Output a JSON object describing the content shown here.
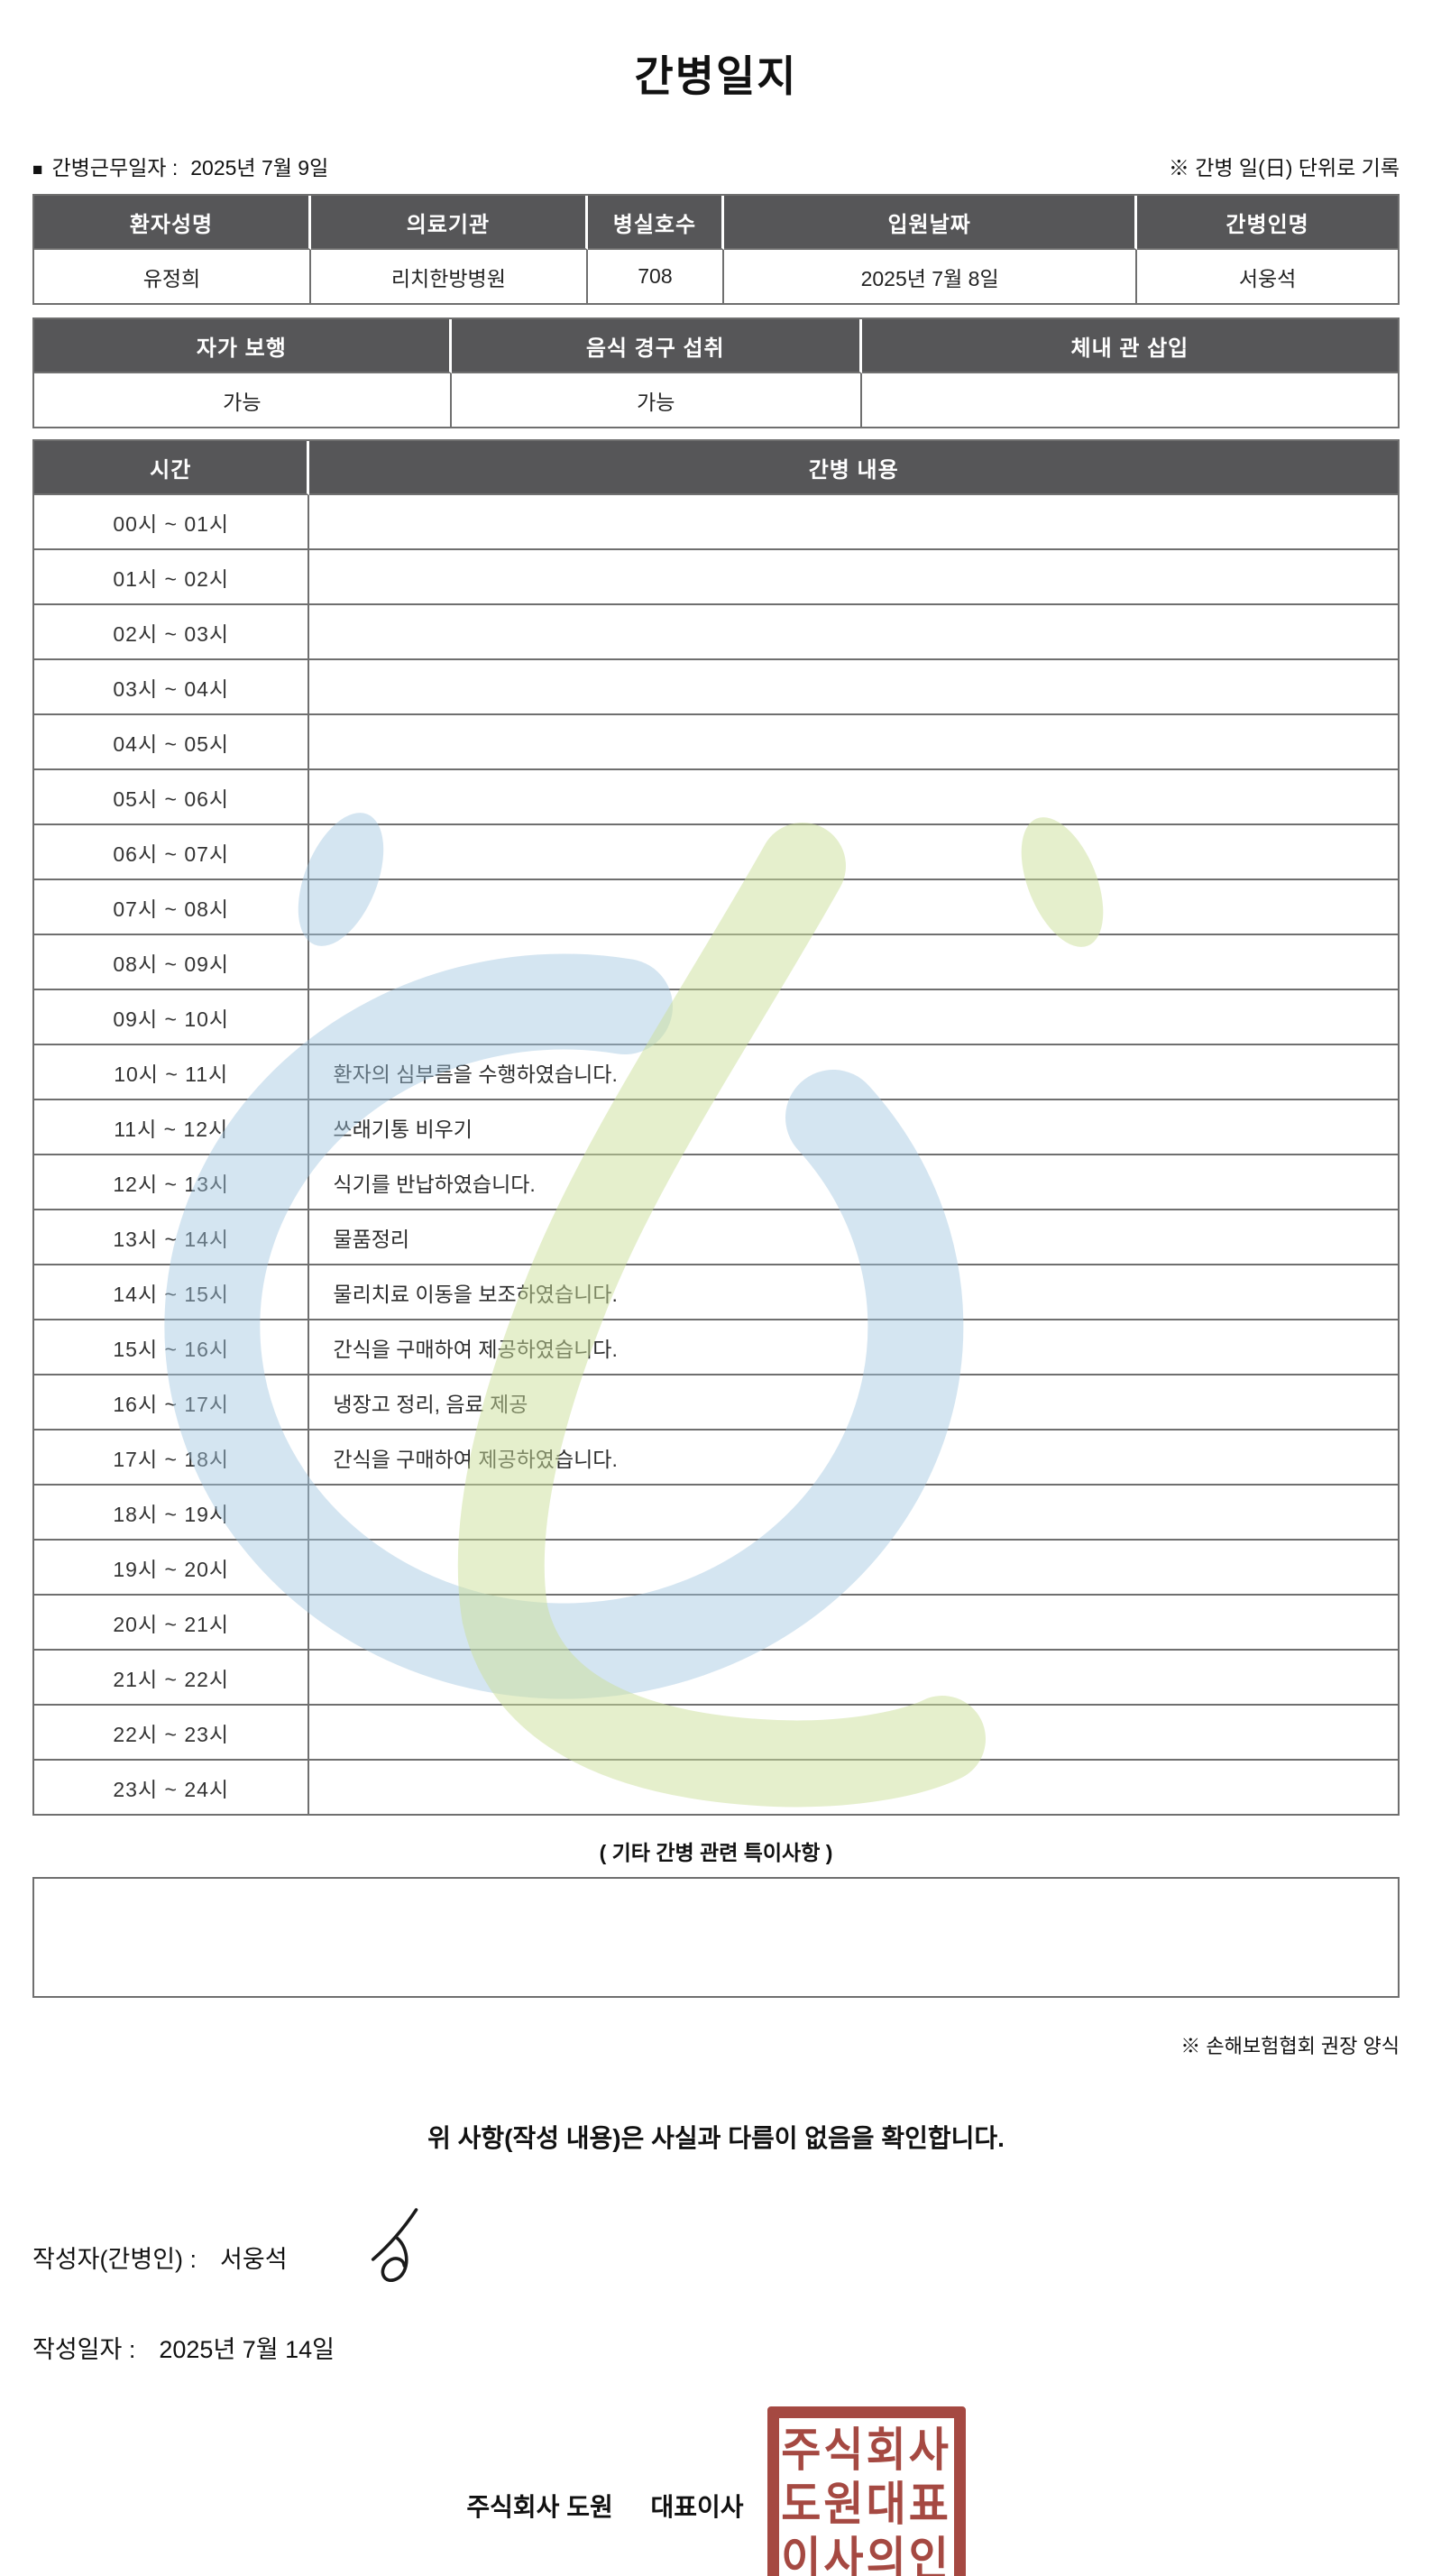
{
  "title": "간병일지",
  "header": {
    "work_date_label": "간병근무일자  :",
    "work_date_value": "2025년 7월 9일",
    "unit_note": "※ 간병 일(日) 단위로 기록"
  },
  "patient_table": {
    "headers": [
      "환자성명",
      "의료기관",
      "병실호수",
      "입원날짜",
      "간병인명"
    ],
    "values": [
      "유정희",
      "리치한방병원",
      "708",
      "2025년 7월 8일",
      "서웅석"
    ]
  },
  "status_table": {
    "headers": [
      "자가 보행",
      "음식 경구 섭취",
      "체내 관 삽입"
    ],
    "values": [
      "가능",
      "가능",
      ""
    ]
  },
  "time_table": {
    "headers": [
      "시간",
      "간병 내용"
    ],
    "rows": [
      {
        "time": "00시 ~ 01시",
        "content": ""
      },
      {
        "time": "01시 ~ 02시",
        "content": ""
      },
      {
        "time": "02시 ~ 03시",
        "content": ""
      },
      {
        "time": "03시 ~ 04시",
        "content": ""
      },
      {
        "time": "04시 ~ 05시",
        "content": ""
      },
      {
        "time": "05시 ~ 06시",
        "content": ""
      },
      {
        "time": "06시 ~ 07시",
        "content": ""
      },
      {
        "time": "07시 ~ 08시",
        "content": ""
      },
      {
        "time": "08시 ~ 09시",
        "content": ""
      },
      {
        "time": "09시 ~ 10시",
        "content": ""
      },
      {
        "time": "10시 ~ 11시",
        "content": "환자의 심부름을 수행하였습니다."
      },
      {
        "time": "11시 ~ 12시",
        "content": "쓰래기통 비우기"
      },
      {
        "time": "12시 ~ 13시",
        "content": "식기를 반납하였습니다."
      },
      {
        "time": "13시 ~ 14시",
        "content": "물품정리"
      },
      {
        "time": "14시 ~ 15시",
        "content": "물리치료 이동을 보조하였습니다."
      },
      {
        "time": "15시 ~ 16시",
        "content": "간식을 구매하여 제공하였습니다."
      },
      {
        "time": "16시 ~ 17시",
        "content": "냉장고 정리, 음료 제공"
      },
      {
        "time": "17시 ~ 18시",
        "content": "간식을 구매하여 제공하였습니다."
      },
      {
        "time": "18시 ~ 19시",
        "content": ""
      },
      {
        "time": "19시 ~ 20시",
        "content": ""
      },
      {
        "time": "20시 ~ 21시",
        "content": ""
      },
      {
        "time": "21시 ~ 22시",
        "content": ""
      },
      {
        "time": "22시 ~ 23시",
        "content": ""
      },
      {
        "time": "23시 ~ 24시",
        "content": ""
      }
    ]
  },
  "extra_notes": {
    "heading": "( 기타 간병 관련 특이사항 )",
    "content": ""
  },
  "form_note": "※ 손해보험협회 권장 양식",
  "confirmation": "위 사항(작성 내용)은 사실과 다름이 없음을 확인합니다.",
  "writer": {
    "label": "작성자(간병인) :",
    "name": "서웅석"
  },
  "write_date": {
    "label": "작성일자 :",
    "value": "2025년 7월 14일"
  },
  "company": {
    "name": "주식회사 도원",
    "ceo": "대표이사"
  },
  "stamp": {
    "lines": [
      "주식회사",
      "도원대표",
      "이사의인"
    ],
    "color": "#9e3a33"
  },
  "colors": {
    "header_bg": "#565658",
    "border": "#6f6f6f",
    "watermark_blue": "#9fc5e0",
    "watermark_green": "#ccdf9a",
    "stamp_red": "#9e3a33"
  }
}
